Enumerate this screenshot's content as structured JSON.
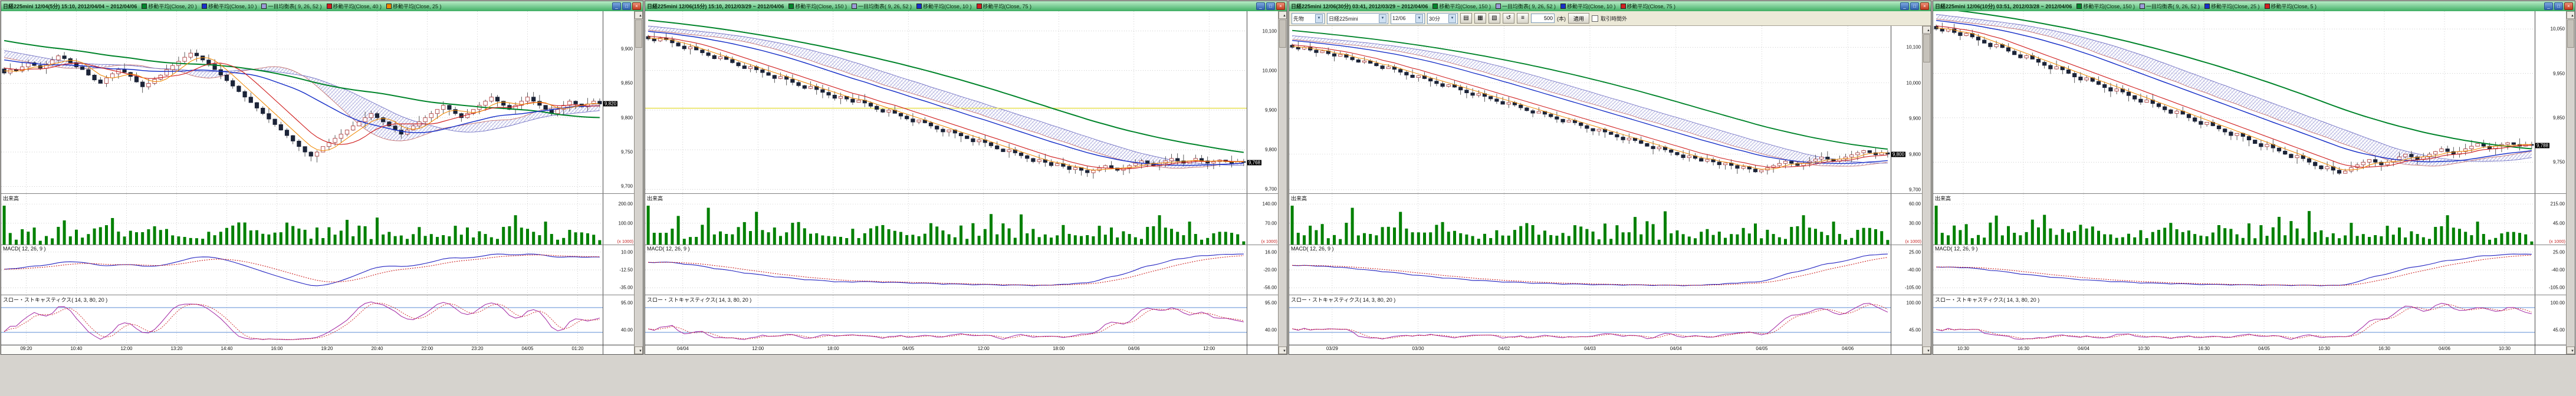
{
  "icons": {
    "minimize": "_",
    "maximize": "□",
    "close": "×",
    "up": "▲",
    "down": "▼",
    "dropdown": "▼"
  },
  "colors": {
    "ma_fast": "#f08800",
    "ma_mid": "#d02020",
    "ma_slow": "#1830c8",
    "ma_long": "#00842a",
    "cloud_edge_a": "#c06868",
    "cloud_edge_b": "#6868c0",
    "cloud_hatch": "#9b9bd6",
    "candle_up_fill": "#ffffff",
    "candle_up_stroke": "#a83030",
    "candle_down": "#1c2438",
    "wick": "#333333",
    "volume": "#008000",
    "macd_line": "#2020c0",
    "macd_signal": "#cc2020",
    "stoch_k": "#a020a0",
    "stoch_d": "#d03030",
    "stoch_level": "#5b8dd6",
    "grid": "#b8b8b8",
    "level_line": "#e6e050"
  },
  "panels": [
    {
      "title": "日経225mini 12/04(5分) 15:10, 2012/04/04 ~ 2012/04/06",
      "indicators": [
        {
          "color": "#00842a",
          "label": "移動平均(Close, 20 )"
        },
        {
          "color": "#1830c8",
          "label": "移動平均(Close, 10 )"
        },
        {
          "color": "#9b9bd6",
          "label": "一目均衡表( 9, 26, 52 )"
        },
        {
          "color": "#d02020",
          "label": "移動平均(Close, 40 )"
        },
        {
          "color": "#f08800",
          "label": "移動平均(Close, 25 )"
        }
      ],
      "sections": {
        "volume_label": "出来高",
        "macd_label": "MACD( 12, 26, 9 )",
        "stoch_label": "スロー・ストキャスティクス( 14, 3, 80, 20 )"
      },
      "time_labels": [
        "09:20",
        "10:40",
        "12:00",
        "13:20",
        "14:40",
        "16:00",
        "19:20",
        "20:40",
        "22:00",
        "23:20",
        "04/05",
        "01:20"
      ],
      "chart_data": {
        "type": "candlestick",
        "price_range": [
          9690,
          9955
        ],
        "price_ticks": [
          "9,900",
          "9,850",
          "9,800",
          "9,750",
          "9,700"
        ],
        "current_price": "9,820",
        "volume_ticks": [
          "200.00",
          "100.00"
        ],
        "volume_note": "(x 1000)",
        "macd_ticks": [
          "10.00",
          "-12.50",
          "-35.00"
        ],
        "stoch_ticks": [
          "95.00",
          "40.00"
        ],
        "closes": [
          9865,
          9870,
          9868,
          9874,
          9880,
          9876,
          9872,
          9878,
          9884,
          9890,
          9886,
          9880,
          9874,
          9870,
          9862,
          9855,
          9850,
          9858,
          9864,
          9870,
          9866,
          9860,
          9852,
          9845,
          9850,
          9856,
          9862,
          9870,
          9876,
          9882,
          9888,
          9894,
          9890,
          9884,
          9878,
          9870,
          9862,
          9854,
          9846,
          9838,
          9830,
          9822,
          9814,
          9806,
          9798,
          9790,
          9782,
          9774,
          9766,
          9758,
          9750,
          9744,
          9750,
          9758,
          9764,
          9770,
          9776,
          9782,
          9788,
          9794,
          9800,
          9806,
          9800,
          9794,
          9788,
          9782,
          9776,
          9782,
          9788,
          9794,
          9800,
          9806,
          9812,
          9818,
          9812,
          9806,
          9800,
          9806,
          9812,
          9818,
          9824,
          9830,
          9824,
          9818,
          9812,
          9818,
          9824,
          9830,
          9824,
          9818,
          9812,
          9806,
          9812,
          9818,
          9824,
          9820,
          9816,
          9820,
          9824,
          9820
        ]
      }
    },
    {
      "title": "日経225mini 12/06(15分) 15:10, 2012/03/29 ~ 2012/04/06",
      "indicators": [
        {
          "color": "#00842a",
          "label": "移動平均(Close, 150 )"
        },
        {
          "color": "#9b9bd6",
          "label": "一目均衡表( 9, 26, 52 )"
        },
        {
          "color": "#1830c8",
          "label": "移動平均(Close, 10 )"
        },
        {
          "color": "#d02020",
          "label": "移動平均(Close, 75 )"
        }
      ],
      "sections": {
        "volume_label": "出来高",
        "macd_label": "MACD( 12, 26, 9 )",
        "stoch_label": "スロー・ストキャスティクス( 14, 3, 80, 20 )"
      },
      "time_labels": [
        "04/04",
        "12:00",
        "18:00",
        "04/05",
        "12:00",
        "18:00",
        "04/06",
        "12:00"
      ],
      "chart_data": {
        "type": "candlestick",
        "price_range": [
          9690,
          10150
        ],
        "price_ticks": [
          "10,100",
          "10,000",
          "9,900",
          "9,800",
          "9,700"
        ],
        "current_price": "9,768",
        "volume_ticks": [
          "140.00",
          "70.00"
        ],
        "volume_note": "(x 1000)",
        "macd_ticks": [
          "16.00",
          "-20.00",
          "-56.00"
        ],
        "stoch_ticks": [
          "95.00",
          "40.00"
        ],
        "level_line": 9905,
        "closes": [
          10080,
          10075,
          10082,
          10078,
          10070,
          10062,
          10055,
          10060,
          10052,
          10045,
          10038,
          10030,
          10035,
          10028,
          10020,
          10012,
          10005,
          10010,
          10002,
          9995,
          9988,
          9980,
          9985,
          9978,
          9970,
          9962,
          9955,
          9960,
          9952,
          9945,
          9938,
          9930,
          9935,
          9928,
          9920,
          9925,
          9918,
          9910,
          9902,
          9895,
          9900,
          9892,
          9885,
          9878,
          9870,
          9875,
          9868,
          9860,
          9852,
          9845,
          9850,
          9842,
          9835,
          9828,
          9820,
          9825,
          9818,
          9810,
          9802,
          9795,
          9800,
          9792,
          9785,
          9778,
          9770,
          9775,
          9768,
          9760,
          9765,
          9758,
          9750,
          9755,
          9748,
          9742,
          9748,
          9754,
          9760,
          9754,
          9748,
          9754,
          9760,
          9766,
          9772,
          9766,
          9760,
          9766,
          9772,
          9778,
          9772,
          9766,
          9772,
          9778,
          9772,
          9766,
          9770,
          9774,
          9770,
          9766,
          9770,
          9768
        ]
      }
    },
    {
      "title": "日経225mini 12/06(30分) 03:41, 2012/03/29 ~ 2012/04/06",
      "indicators": [
        {
          "color": "#00842a",
          "label": "移動平均(Close, 150 )"
        },
        {
          "color": "#9b9bd6",
          "label": "一目均衡表( 9, 26, 52 )"
        },
        {
          "color": "#1830c8",
          "label": "移動平均(Close, 10 )"
        },
        {
          "color": "#d02020",
          "label": "移動平均(Close, 75 )"
        }
      ],
      "sections": {
        "volume_label": "出来高",
        "macd_label": "MACD( 12, 26, 9 )",
        "stoch_label": "スロー・ストキャスティクス( 14, 3, 80, 20 )"
      },
      "time_labels": [
        "03/29",
        "03/30",
        "04/02",
        "04/03",
        "04/04",
        "04/05",
        "04/06"
      ],
      "toolbar": {
        "selects": [
          {
            "name": "market-select",
            "value": "先物",
            "width": 50
          },
          {
            "name": "symbol-select",
            "value": "日経225mini",
            "width": 98
          },
          {
            "name": "contract-select",
            "value": "12/06",
            "width": 52
          },
          {
            "name": "timeframe-select",
            "value": "30分",
            "width": 46
          }
        ],
        "icon_buttons": [
          {
            "name": "chart-type-candle-button",
            "glyph": "▤"
          },
          {
            "name": "chart-type-bar-button",
            "glyph": "▦"
          },
          {
            "name": "chart-type-line-button",
            "glyph": "▧"
          },
          {
            "name": "refresh-button",
            "glyph": "↺"
          },
          {
            "name": "settings-button",
            "glyph": "≡"
          }
        ],
        "bars_value": "500",
        "bars_unit": "(本)",
        "apply_label": "適用",
        "checkbox_label": "取引時間外"
      },
      "chart_data": {
        "type": "candlestick",
        "price_range": [
          9690,
          10160
        ],
        "price_ticks": [
          "10,100",
          "10,000",
          "9,900",
          "9,800",
          "9,700"
        ],
        "current_price": "9,800",
        "volume_ticks": [
          "60.00",
          "30.00"
        ],
        "volume_note": "(x 1000)",
        "macd_ticks": [
          "25.00",
          "-40.00",
          "-105.00"
        ],
        "stoch_ticks": [
          "100.00",
          "45.00"
        ],
        "closes": [
          10100,
          10095,
          10100,
          10092,
          10085,
          10090,
          10082,
          10075,
          10080,
          10072,
          10065,
          10058,
          10062,
          10055,
          10048,
          10040,
          10045,
          10038,
          10030,
          10022,
          10015,
          10020,
          10012,
          10005,
          9998,
          9990,
          9995,
          9988,
          9980,
          9972,
          9965,
          9970,
          9962,
          9955,
          9948,
          9940,
          9945,
          9938,
          9930,
          9922,
          9915,
          9920,
          9912,
          9905,
          9898,
          9890,
          9895,
          9888,
          9880,
          9872,
          9865,
          9870,
          9862,
          9855,
          9848,
          9840,
          9845,
          9838,
          9830,
          9822,
          9815,
          9820,
          9812,
          9805,
          9798,
          9790,
          9795,
          9788,
          9780,
          9785,
          9778,
          9770,
          9775,
          9768,
          9760,
          9765,
          9758,
          9750,
          9755,
          9762,
          9768,
          9774,
          9780,
          9774,
          9768,
          9774,
          9780,
          9786,
          9792,
          9786,
          9780,
          9786,
          9792,
          9798,
          9804,
          9810,
          9804,
          9798,
          9804,
          9800
        ]
      }
    },
    {
      "title": "日経225mini 12/06(10分) 03:51, 2012/03/28 ~ 2012/04/06",
      "indicators": [
        {
          "color": "#00842a",
          "label": "移動平均(Close, 150 )"
        },
        {
          "color": "#9b9bd6",
          "label": "一目均衡表( 9, 26, 52 )"
        },
        {
          "color": "#1830c8",
          "label": "移動平均(Close, 25 )"
        },
        {
          "color": "#d02020",
          "label": "移動平均(Close, 5 )"
        }
      ],
      "sections": {
        "volume_label": "出来高",
        "macd_label": "MACD( 12, 26, 9 )",
        "stoch_label": "スロー・ストキャスティクス( 14, 3, 80, 20 )"
      },
      "time_labels": [
        "10:30",
        "16:30",
        "04/04",
        "10:30",
        "16:30",
        "04/05",
        "10:30",
        "16:30",
        "04/06",
        "10:30"
      ],
      "chart_data": {
        "type": "candlestick",
        "price_range": [
          9680,
          10090
        ],
        "price_ticks": [
          "10,050",
          "9,950",
          "9,850",
          "9,750"
        ],
        "current_price": "9,788",
        "volume_ticks": [
          "215.00",
          "45.00"
        ],
        "volume_note": "(x 1000)",
        "macd_ticks": [
          "25.00",
          "-40.00",
          "-105.00"
        ],
        "stoch_ticks": [
          "100.00",
          "45.00"
        ],
        "closes": [
          10050,
          10045,
          10050,
          10042,
          10035,
          10040,
          10032,
          10025,
          10018,
          10010,
          10015,
          10008,
          10000,
          9992,
          9985,
          9990,
          9982,
          9975,
          9968,
          9960,
          9965,
          9958,
          9950,
          9942,
          9935,
          9940,
          9932,
          9925,
          9918,
          9910,
          9915,
          9908,
          9900,
          9892,
          9885,
          9890,
          9882,
          9875,
          9868,
          9860,
          9865,
          9858,
          9850,
          9842,
          9835,
          9840,
          9832,
          9825,
          9818,
          9810,
          9815,
          9808,
          9800,
          9792,
          9785,
          9790,
          9782,
          9775,
          9768,
          9760,
          9765,
          9758,
          9750,
          9742,
          9735,
          9740,
          9732,
          9725,
          9730,
          9738,
          9744,
          9750,
          9756,
          9750,
          9744,
          9750,
          9756,
          9762,
          9768,
          9762,
          9756,
          9762,
          9768,
          9774,
          9780,
          9774,
          9768,
          9774,
          9780,
          9786,
          9792,
          9786,
          9780,
          9786,
          9790,
          9794,
          9790,
          9786,
          9790,
          9788
        ]
      }
    }
  ]
}
